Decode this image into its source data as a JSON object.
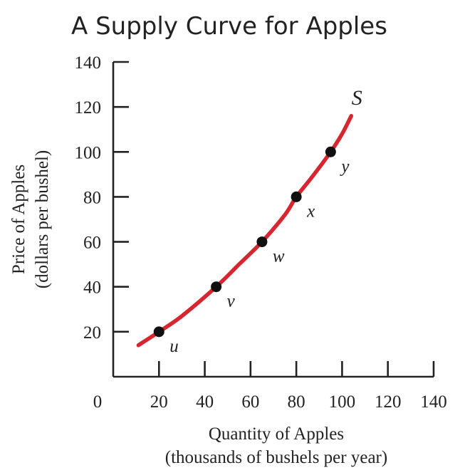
{
  "chart_data": {
    "type": "line",
    "title": "A Supply Curve for Apples",
    "xlabel": [
      "Quantity of Apples",
      "(thousands of bushels per year)"
    ],
    "ylabel": [
      "Price of Apples",
      "(dollars per bushel)"
    ],
    "xlim": [
      0,
      140
    ],
    "ylim": [
      0,
      140
    ],
    "x_ticks": [
      20,
      40,
      60,
      80,
      100,
      120,
      140
    ],
    "y_ticks": [
      20,
      40,
      60,
      80,
      100,
      120,
      140
    ],
    "origin_label": "0",
    "grid": false,
    "series": [
      {
        "name": "S",
        "color": "#d7262f",
        "curve": [
          [
            11,
            14
          ],
          [
            20,
            20
          ],
          [
            30,
            27
          ],
          [
            45,
            40
          ],
          [
            55,
            50
          ],
          [
            65,
            60
          ],
          [
            75,
            72
          ],
          [
            80,
            80
          ],
          [
            87,
            89
          ],
          [
            95,
            100
          ],
          [
            100,
            108
          ],
          [
            104,
            116
          ]
        ],
        "points": [
          {
            "label": "u",
            "x": 20,
            "y": 20
          },
          {
            "label": "v",
            "x": 45,
            "y": 40
          },
          {
            "label": "w",
            "x": 65,
            "y": 60
          },
          {
            "label": "x",
            "x": 80,
            "y": 80
          },
          {
            "label": "y",
            "x": 95,
            "y": 100
          }
        ]
      }
    ]
  }
}
